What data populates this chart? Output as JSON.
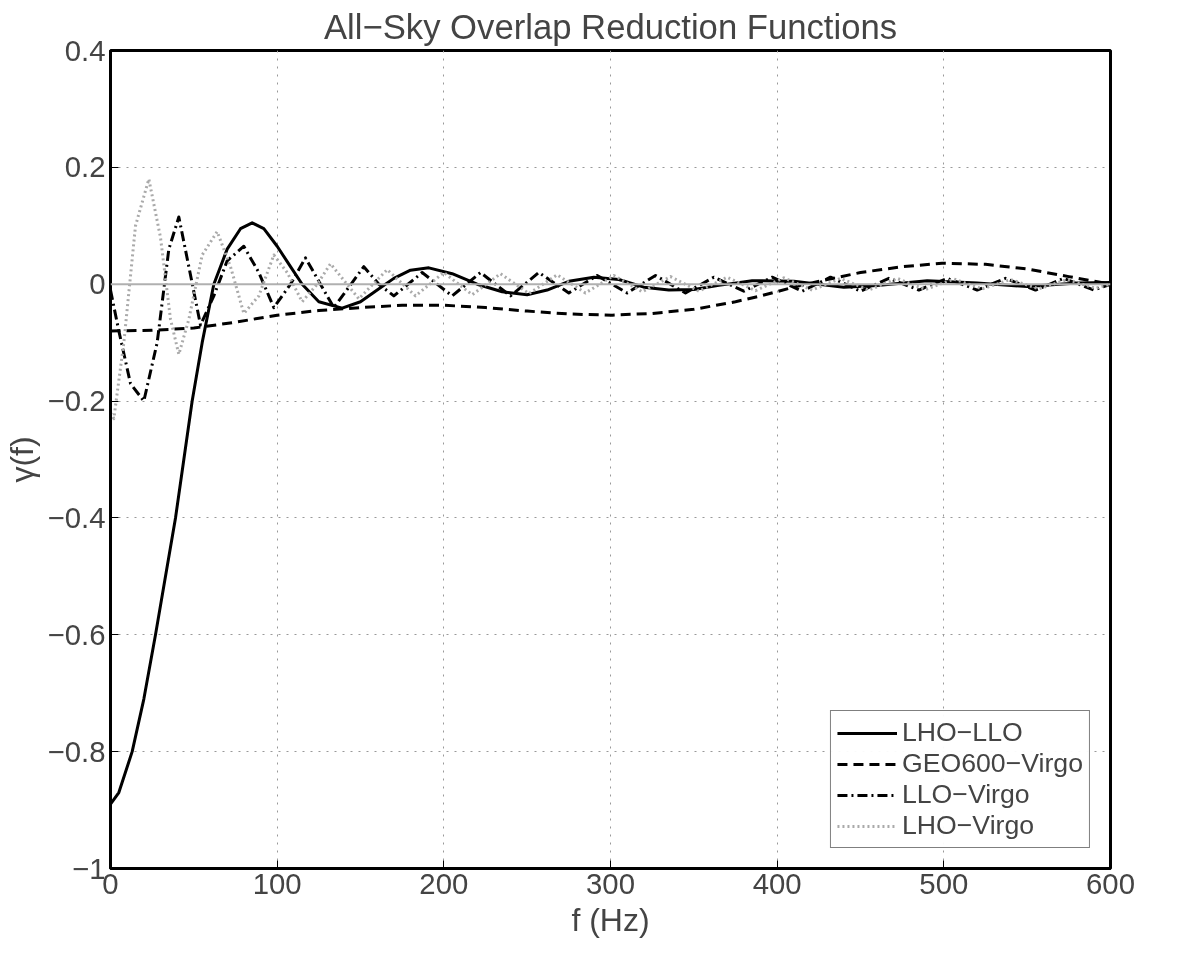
{
  "chart_data": {
    "type": "line",
    "title": "All−Sky Overlap Reduction Functions",
    "xlabel": "f (Hz)",
    "ylabel": "γ(f)",
    "xlim": [
      0,
      600
    ],
    "ylim": [
      -1,
      0.4
    ],
    "xticks": [
      0,
      100,
      200,
      300,
      400,
      500,
      600
    ],
    "yticks": [
      {
        "value": -1,
        "label": "−1"
      },
      {
        "value": -0.8,
        "label": "−0.8"
      },
      {
        "value": -0.6,
        "label": "−0.6"
      },
      {
        "value": -0.4,
        "label": "−0.4"
      },
      {
        "value": -0.2,
        "label": "−0.2"
      },
      0,
      0.2,
      0.4
    ],
    "grid": true,
    "legend": "bottom right",
    "marker": "none",
    "ref_lines": [
      {
        "axis": "y",
        "value": 0,
        "color": "#b0b0b0",
        "line_style": "solid"
      }
    ],
    "series": [
      {
        "name": "LHO−LLO",
        "color": "#000000",
        "line_style": "solid",
        "x": [
          0,
          5,
          13,
          20,
          27,
          33,
          39,
          44,
          49,
          55,
          62,
          70,
          78,
          85,
          92,
          100,
          108,
          115,
          125,
          139,
          150,
          160,
          170,
          180,
          191,
          205,
          220,
          235,
          250,
          262,
          275,
          290,
          305,
          320,
          335,
          350,
          365,
          385,
          410,
          440,
          460,
          490,
          520,
          550,
          580,
          600
        ],
        "values": [
          -0.89,
          -0.87,
          -0.8,
          -0.71,
          -0.6,
          -0.5,
          -0.4,
          -0.3,
          -0.2,
          -0.1,
          0,
          0.06,
          0.095,
          0.105,
          0.095,
          0.065,
          0.03,
          0,
          -0.03,
          -0.041,
          -0.03,
          -0.01,
          0.01,
          0.024,
          0.028,
          0.018,
          0,
          -0.013,
          -0.018,
          -0.01,
          0.005,
          0.012,
          0.008,
          -0.005,
          -0.01,
          -0.009,
          -0.002,
          0.006,
          0.005,
          -0.005,
          -0.002,
          0.006,
          0.002,
          -0.004,
          0.002,
          0.003
        ]
      },
      {
        "name": "GEO600−Virgo",
        "color": "#000000",
        "line_style": "dashed",
        "x": [
          0,
          25,
          50,
          75,
          100,
          125,
          150,
          175,
          200,
          225,
          250,
          275,
          301,
          325,
          350,
          375,
          390,
          410,
          430,
          450,
          475,
          499,
          525,
          550,
          575,
          600
        ],
        "values": [
          -0.08,
          -0.079,
          -0.075,
          -0.065,
          -0.053,
          -0.045,
          -0.04,
          -0.036,
          -0.036,
          -0.04,
          -0.046,
          -0.051,
          -0.053,
          -0.05,
          -0.043,
          -0.03,
          -0.02,
          -0.005,
          0.008,
          0.02,
          0.03,
          0.036,
          0.034,
          0.026,
          0.013,
          0
        ]
      },
      {
        "name": "LLO−Virgo",
        "color": "#000000",
        "line_style": "dashdot",
        "x": [
          0,
          5,
          12,
          20,
          28,
          35,
          41,
          47,
          54,
          62,
          70,
          80,
          89,
          98,
          108,
          117,
          126,
          134,
          143,
          152,
          161,
          170,
          187,
          205,
          222,
          240,
          257,
          275,
          292,
          310,
          327,
          345,
          362,
          380,
          397,
          415,
          432,
          450,
          467,
          485,
          502,
          520,
          537,
          555,
          572,
          590,
          600
        ],
        "values": [
          -0.01,
          -0.08,
          -0.17,
          -0.2,
          -0.1,
          0.06,
          0.115,
          0.03,
          -0.07,
          -0.02,
          0.04,
          0.065,
          0.02,
          -0.04,
          0.0,
          0.045,
          0.0,
          -0.04,
          -0.005,
          0.03,
          0.0,
          -0.02,
          0.02,
          -0.02,
          0.02,
          -0.02,
          0.02,
          -0.015,
          0.015,
          -0.015,
          0.015,
          -0.015,
          0.012,
          -0.012,
          0.012,
          -0.012,
          0.012,
          -0.012,
          0.01,
          -0.01,
          0.01,
          -0.01,
          0.01,
          -0.01,
          0.01,
          -0.01,
          0
        ]
      },
      {
        "name": "LHO−Virgo",
        "color": "#aaaaaa",
        "line_style": "dotted",
        "x": [
          0,
          2,
          8,
          15,
          23,
          30,
          36,
          41,
          47,
          55,
          64,
          72,
          80,
          89,
          98,
          106,
          115,
          124,
          132,
          149,
          166,
          183,
          200,
          217,
          234,
          251,
          268,
          285,
          302,
          319,
          336,
          353,
          370,
          387,
          404,
          421,
          438,
          455,
          472,
          489,
          506,
          523,
          540,
          557,
          574,
          591,
          600
        ],
        "values": [
          -0.22,
          -0.23,
          -0.1,
          0.1,
          0.18,
          0.08,
          -0.06,
          -0.12,
          -0.06,
          0.05,
          0.09,
          0.03,
          -0.05,
          -0.02,
          0.05,
          0.02,
          -0.03,
          0.0,
          0.035,
          -0.025,
          0.025,
          -0.02,
          0.02,
          -0.018,
          0.018,
          -0.016,
          0.016,
          -0.015,
          0.015,
          -0.013,
          0.013,
          -0.012,
          0.012,
          -0.011,
          0.011,
          -0.01,
          0.01,
          -0.01,
          0.01,
          -0.009,
          0.009,
          -0.008,
          0.008,
          -0.008,
          0.008,
          -0.007,
          0
        ]
      }
    ]
  }
}
